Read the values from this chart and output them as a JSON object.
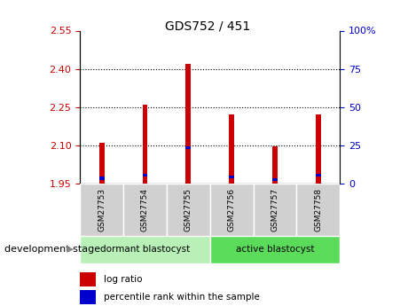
{
  "title": "GDS752 / 451",
  "samples": [
    "GSM27753",
    "GSM27754",
    "GSM27755",
    "GSM27756",
    "GSM27757",
    "GSM27758"
  ],
  "bar_bottoms": [
    1.95,
    1.95,
    1.95,
    1.95,
    1.95,
    1.95
  ],
  "log_ratio_tops": [
    2.11,
    2.26,
    2.42,
    2.22,
    2.095,
    2.22
  ],
  "percentile_bottoms": [
    1.965,
    1.977,
    2.085,
    1.97,
    1.96,
    1.977
  ],
  "percentile_tops": [
    1.977,
    1.989,
    2.097,
    1.982,
    1.972,
    1.987
  ],
  "ylim_min": 1.95,
  "ylim_max": 2.55,
  "yticks_left": [
    1.95,
    2.1,
    2.25,
    2.4,
    2.55
  ],
  "yticks_right": [
    0,
    25,
    50,
    75,
    100
  ],
  "groups": [
    {
      "label": "dormant blastocyst",
      "samples": [
        0,
        1,
        2
      ],
      "color": "#b8f0b8"
    },
    {
      "label": "active blastocyst",
      "samples": [
        3,
        4,
        5
      ],
      "color": "#5adc5a"
    }
  ],
  "group_header": "development stage",
  "bar_color_red": "#cc0000",
  "bar_color_blue": "#0000cc",
  "tick_color_left": "#cc0000",
  "tick_color_right": "#0000cc",
  "plot_bg": "#ffffff",
  "bar_width": 0.12,
  "legend_items": [
    "log ratio",
    "percentile rank within the sample"
  ]
}
